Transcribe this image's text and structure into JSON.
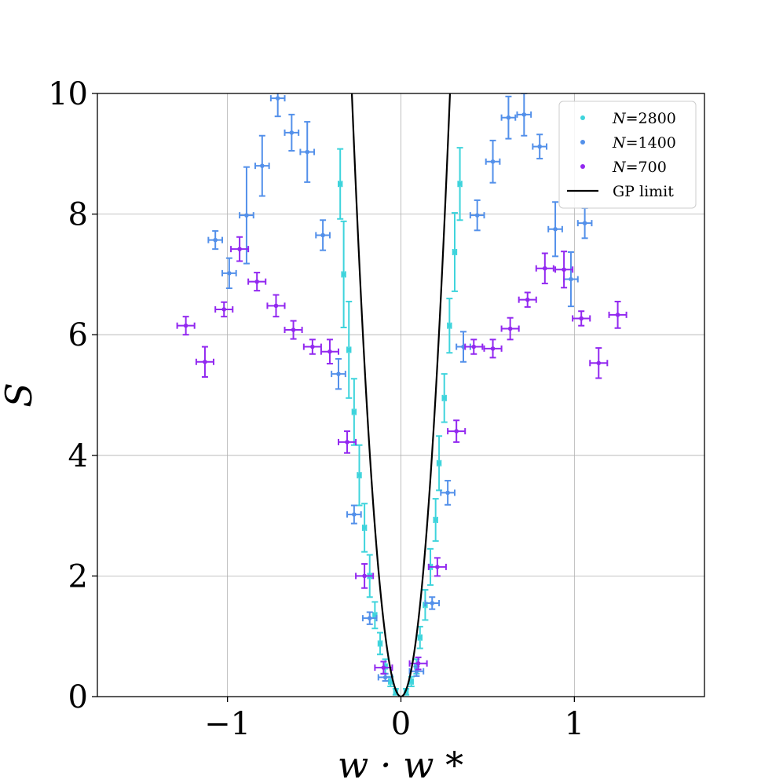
{
  "chart_data": {
    "type": "scatter",
    "title": "",
    "xlabel": "w · w *",
    "ylabel": "S",
    "xlim": [
      -1.75,
      1.75
    ],
    "ylim": [
      0,
      10
    ],
    "x_ticks": [
      {
        "value": -1,
        "label": "−1"
      },
      {
        "value": 0,
        "label": "0"
      },
      {
        "value": 1,
        "label": "1"
      }
    ],
    "y_ticks": [
      {
        "value": 0,
        "label": "0"
      },
      {
        "value": 2,
        "label": "2"
      },
      {
        "value": 4,
        "label": "4"
      },
      {
        "value": 6,
        "label": "6"
      },
      {
        "value": 8,
        "label": "8"
      },
      {
        "value": 10,
        "label": "10"
      }
    ],
    "grid": true,
    "legend_position": "top-right",
    "series": [
      {
        "name": "N=2800",
        "label_var": "N",
        "label_eq": "=",
        "label_num": "2800",
        "color": "#3ed4dc",
        "points": [
          {
            "x": -0.35,
            "y": 8.5,
            "xerr": 0.01,
            "yerr": 0.58
          },
          {
            "x": -0.33,
            "y": 7.0,
            "xerr": 0.01,
            "yerr": 0.88
          },
          {
            "x": -0.3,
            "y": 5.75,
            "xerr": 0.01,
            "yerr": 0.8
          },
          {
            "x": -0.27,
            "y": 4.72,
            "xerr": 0.01,
            "yerr": 0.55
          },
          {
            "x": -0.24,
            "y": 3.67,
            "xerr": 0.01,
            "yerr": 0.5
          },
          {
            "x": -0.21,
            "y": 2.8,
            "xerr": 0.01,
            "yerr": 0.4
          },
          {
            "x": -0.18,
            "y": 2.0,
            "xerr": 0.01,
            "yerr": 0.35
          },
          {
            "x": -0.15,
            "y": 1.35,
            "xerr": 0.01,
            "yerr": 0.22
          },
          {
            "x": -0.12,
            "y": 0.88,
            "xerr": 0.01,
            "yerr": 0.18
          },
          {
            "x": -0.09,
            "y": 0.5,
            "xerr": 0.01,
            "yerr": 0.12
          },
          {
            "x": -0.06,
            "y": 0.25,
            "xerr": 0.01,
            "yerr": 0.08
          },
          {
            "x": -0.03,
            "y": 0.08,
            "xerr": 0.01,
            "yerr": 0.05
          },
          {
            "x": 0.03,
            "y": 0.08,
            "xerr": 0.01,
            "yerr": 0.05
          },
          {
            "x": 0.06,
            "y": 0.25,
            "xerr": 0.01,
            "yerr": 0.08
          },
          {
            "x": 0.09,
            "y": 0.5,
            "xerr": 0.01,
            "yerr": 0.12
          },
          {
            "x": 0.11,
            "y": 0.98,
            "xerr": 0.01,
            "yerr": 0.18
          },
          {
            "x": 0.14,
            "y": 1.52,
            "xerr": 0.01,
            "yerr": 0.25
          },
          {
            "x": 0.17,
            "y": 2.15,
            "xerr": 0.01,
            "yerr": 0.3
          },
          {
            "x": 0.2,
            "y": 2.93,
            "xerr": 0.01,
            "yerr": 0.35
          },
          {
            "x": 0.22,
            "y": 3.87,
            "xerr": 0.01,
            "yerr": 0.45
          },
          {
            "x": 0.25,
            "y": 4.95,
            "xerr": 0.01,
            "yerr": 0.4
          },
          {
            "x": 0.28,
            "y": 6.15,
            "xerr": 0.01,
            "yerr": 0.45
          },
          {
            "x": 0.31,
            "y": 7.37,
            "xerr": 0.01,
            "yerr": 0.65
          },
          {
            "x": 0.34,
            "y": 8.5,
            "xerr": 0.01,
            "yerr": 0.6
          }
        ]
      },
      {
        "name": "N=1400",
        "label_var": "N",
        "label_eq": "=",
        "label_num": "1400",
        "color": "#5390ea",
        "points": [
          {
            "x": -1.07,
            "y": 7.57,
            "xerr": 0.04,
            "yerr": 0.15
          },
          {
            "x": -0.99,
            "y": 7.02,
            "xerr": 0.04,
            "yerr": 0.25
          },
          {
            "x": -0.89,
            "y": 7.98,
            "xerr": 0.04,
            "yerr": 0.8
          },
          {
            "x": -0.8,
            "y": 8.8,
            "xerr": 0.04,
            "yerr": 0.5
          },
          {
            "x": -0.71,
            "y": 9.92,
            "xerr": 0.04,
            "yerr": 0.3
          },
          {
            "x": -0.63,
            "y": 9.35,
            "xerr": 0.04,
            "yerr": 0.3
          },
          {
            "x": -0.54,
            "y": 9.03,
            "xerr": 0.04,
            "yerr": 0.5
          },
          {
            "x": -0.45,
            "y": 7.65,
            "xerr": 0.04,
            "yerr": 0.25
          },
          {
            "x": -0.36,
            "y": 5.35,
            "xerr": 0.04,
            "yerr": 0.25
          },
          {
            "x": -0.27,
            "y": 3.02,
            "xerr": 0.04,
            "yerr": 0.15
          },
          {
            "x": -0.18,
            "y": 1.3,
            "xerr": 0.04,
            "yerr": 0.1
          },
          {
            "x": -0.09,
            "y": 0.32,
            "xerr": 0.04,
            "yerr": 0.06
          },
          {
            "x": 0.09,
            "y": 0.42,
            "xerr": 0.04,
            "yerr": 0.08
          },
          {
            "x": 0.18,
            "y": 1.55,
            "xerr": 0.04,
            "yerr": 0.1
          },
          {
            "x": 0.27,
            "y": 3.38,
            "xerr": 0.04,
            "yerr": 0.2
          },
          {
            "x": 0.36,
            "y": 5.8,
            "xerr": 0.04,
            "yerr": 0.25
          },
          {
            "x": 0.44,
            "y": 7.98,
            "xerr": 0.04,
            "yerr": 0.25
          },
          {
            "x": 0.53,
            "y": 8.87,
            "xerr": 0.04,
            "yerr": 0.35
          },
          {
            "x": 0.62,
            "y": 9.6,
            "xerr": 0.04,
            "yerr": 0.35
          },
          {
            "x": 0.71,
            "y": 9.65,
            "xerr": 0.04,
            "yerr": 0.35
          },
          {
            "x": 0.8,
            "y": 9.12,
            "xerr": 0.04,
            "yerr": 0.2
          },
          {
            "x": 0.89,
            "y": 7.75,
            "xerr": 0.04,
            "yerr": 0.45
          },
          {
            "x": 0.98,
            "y": 6.92,
            "xerr": 0.04,
            "yerr": 0.45
          },
          {
            "x": 1.06,
            "y": 7.85,
            "xerr": 0.04,
            "yerr": 0.25
          }
        ]
      },
      {
        "name": "N=700",
        "label_var": "N",
        "label_eq": "=",
        "label_num": "700",
        "color": "#9228f0",
        "points": [
          {
            "x": -1.24,
            "y": 6.15,
            "xerr": 0.05,
            "yerr": 0.15
          },
          {
            "x": -1.13,
            "y": 5.55,
            "xerr": 0.05,
            "yerr": 0.25
          },
          {
            "x": -1.02,
            "y": 6.42,
            "xerr": 0.05,
            "yerr": 0.12
          },
          {
            "x": -0.93,
            "y": 7.42,
            "xerr": 0.05,
            "yerr": 0.2
          },
          {
            "x": -0.83,
            "y": 6.88,
            "xerr": 0.05,
            "yerr": 0.15
          },
          {
            "x": -0.72,
            "y": 6.48,
            "xerr": 0.05,
            "yerr": 0.18
          },
          {
            "x": -0.62,
            "y": 6.08,
            "xerr": 0.05,
            "yerr": 0.15
          },
          {
            "x": -0.51,
            "y": 5.8,
            "xerr": 0.05,
            "yerr": 0.12
          },
          {
            "x": -0.41,
            "y": 5.72,
            "xerr": 0.05,
            "yerr": 0.2
          },
          {
            "x": -0.31,
            "y": 4.22,
            "xerr": 0.05,
            "yerr": 0.18
          },
          {
            "x": -0.21,
            "y": 2.0,
            "xerr": 0.05,
            "yerr": 0.2
          },
          {
            "x": -0.1,
            "y": 0.48,
            "xerr": 0.05,
            "yerr": 0.1
          },
          {
            "x": 0.1,
            "y": 0.55,
            "xerr": 0.05,
            "yerr": 0.1
          },
          {
            "x": 0.21,
            "y": 2.15,
            "xerr": 0.05,
            "yerr": 0.15
          },
          {
            "x": 0.32,
            "y": 4.4,
            "xerr": 0.05,
            "yerr": 0.18
          },
          {
            "x": 0.42,
            "y": 5.8,
            "xerr": 0.05,
            "yerr": 0.12
          },
          {
            "x": 0.53,
            "y": 5.77,
            "xerr": 0.05,
            "yerr": 0.15
          },
          {
            "x": 0.63,
            "y": 6.1,
            "xerr": 0.05,
            "yerr": 0.18
          },
          {
            "x": 0.73,
            "y": 6.58,
            "xerr": 0.05,
            "yerr": 0.12
          },
          {
            "x": 0.83,
            "y": 7.1,
            "xerr": 0.05,
            "yerr": 0.25
          },
          {
            "x": 0.94,
            "y": 7.08,
            "xerr": 0.05,
            "yerr": 0.3
          },
          {
            "x": 1.04,
            "y": 6.27,
            "xerr": 0.05,
            "yerr": 0.12
          },
          {
            "x": 1.14,
            "y": 5.53,
            "xerr": 0.05,
            "yerr": 0.25
          },
          {
            "x": 1.25,
            "y": 6.33,
            "xerr": 0.05,
            "yerr": 0.22
          }
        ]
      }
    ],
    "curve": {
      "name": "GP limit",
      "color": "#000000",
      "formula": "y = 125 * x^2"
    }
  }
}
